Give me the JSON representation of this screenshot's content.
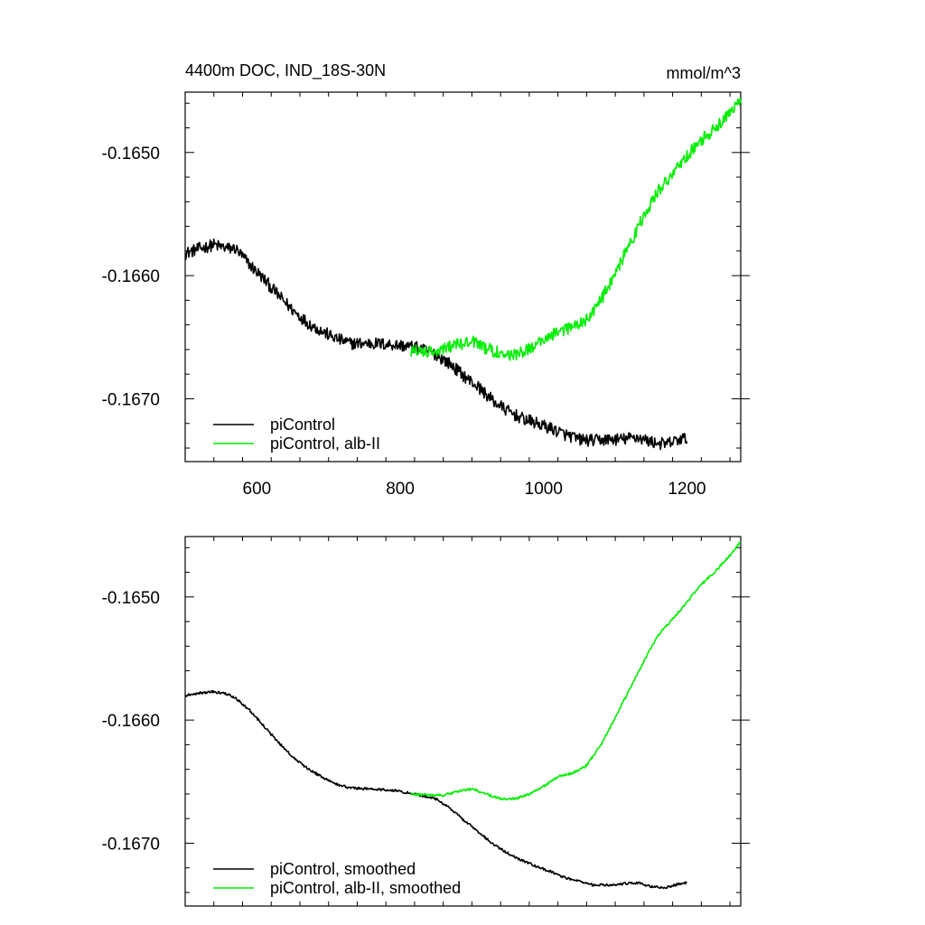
{
  "chart_data": [
    {
      "type": "line",
      "title": "4400m DOC, IND_18S-30N",
      "units": "mmol/m^3",
      "xlim": [
        500,
        1275
      ],
      "ylim": [
        -0.16751,
        -0.16451
      ],
      "xticks": [
        600,
        800,
        1000,
        1200
      ],
      "xtick_labels": [
        "600",
        "800",
        "1000",
        "1200"
      ],
      "yticks": [
        -0.165,
        -0.166,
        -0.167
      ],
      "ytick_labels": [
        "-0.1650",
        "-0.1660",
        "-0.1670"
      ],
      "grid": false,
      "legend_position": "bottom-left",
      "series": [
        {
          "name": "piControl",
          "color": "#000000",
          "noise": 5e-05,
          "x": [
            500,
            520,
            540,
            560,
            570,
            590,
            610,
            630,
            650,
            670,
            690,
            710,
            730,
            760,
            790,
            820,
            850,
            870,
            890,
            910,
            930,
            950,
            970,
            990,
            1010,
            1030,
            1050,
            1070,
            1090,
            1110,
            1130,
            1150,
            1170,
            1190,
            1200
          ],
          "y": [
            -0.16582,
            -0.16578,
            -0.16575,
            -0.16578,
            -0.16578,
            -0.16591,
            -0.16603,
            -0.16616,
            -0.16628,
            -0.16638,
            -0.16645,
            -0.16651,
            -0.16655,
            -0.16655,
            -0.16656,
            -0.16658,
            -0.16664,
            -0.16672,
            -0.16682,
            -0.16691,
            -0.16702,
            -0.1671,
            -0.16716,
            -0.1672,
            -0.16724,
            -0.16729,
            -0.16733,
            -0.16734,
            -0.16733,
            -0.16733,
            -0.16731,
            -0.16735,
            -0.16737,
            -0.16733,
            -0.16732
          ]
        },
        {
          "name": "piControl, alb-II",
          "color": "#00ee00",
          "noise": 5e-05,
          "x": [
            815,
            840,
            860,
            880,
            900,
            920,
            940,
            960,
            980,
            1000,
            1020,
            1040,
            1060,
            1080,
            1100,
            1120,
            1140,
            1160,
            1180,
            1200,
            1220,
            1240,
            1260,
            1275
          ],
          "y": [
            -0.16661,
            -0.16661,
            -0.1666,
            -0.16656,
            -0.16653,
            -0.16659,
            -0.16663,
            -0.16665,
            -0.16659,
            -0.16652,
            -0.16645,
            -0.16642,
            -0.16636,
            -0.1662,
            -0.16598,
            -0.16575,
            -0.16551,
            -0.16531,
            -0.16518,
            -0.16503,
            -0.1649,
            -0.1648,
            -0.16467,
            -0.16455
          ]
        }
      ]
    },
    {
      "type": "line",
      "title": "",
      "xlim": [
        500,
        1275
      ],
      "ylim": [
        -0.16751,
        -0.16451
      ],
      "xticks": [
        600,
        800,
        1000,
        1200
      ],
      "yticks": [
        -0.165,
        -0.166,
        -0.167
      ],
      "ytick_labels": [
        "-0.1650",
        "-0.1660",
        "-0.1670"
      ],
      "grid": false,
      "legend_position": "bottom-left",
      "series": [
        {
          "name": "piControl, smoothed",
          "color": "#000000",
          "noise": 1e-05,
          "x": [
            500,
            520,
            540,
            560,
            570,
            590,
            610,
            630,
            650,
            670,
            690,
            710,
            730,
            760,
            790,
            820,
            850,
            870,
            890,
            910,
            930,
            950,
            970,
            990,
            1010,
            1030,
            1050,
            1070,
            1090,
            1110,
            1130,
            1150,
            1170,
            1190,
            1200
          ],
          "y": [
            -0.1658,
            -0.16578,
            -0.16577,
            -0.16579,
            -0.16582,
            -0.16592,
            -0.16605,
            -0.16618,
            -0.1663,
            -0.16639,
            -0.16646,
            -0.16652,
            -0.16655,
            -0.16656,
            -0.16657,
            -0.1666,
            -0.16664,
            -0.16672,
            -0.16682,
            -0.16691,
            -0.16701,
            -0.16708,
            -0.16714,
            -0.16719,
            -0.16723,
            -0.16728,
            -0.16731,
            -0.16734,
            -0.16734,
            -0.16733,
            -0.16732,
            -0.16735,
            -0.16736,
            -0.16733,
            -0.16732
          ]
        },
        {
          "name": "piControl, alb-II, smoothed",
          "color": "#00ee00",
          "noise": 1e-05,
          "x": [
            815,
            840,
            860,
            880,
            900,
            920,
            940,
            960,
            980,
            1000,
            1020,
            1040,
            1060,
            1080,
            1100,
            1120,
            1140,
            1160,
            1180,
            1200,
            1220,
            1240,
            1260,
            1275
          ],
          "y": [
            -0.1666,
            -0.16661,
            -0.16661,
            -0.16658,
            -0.16656,
            -0.1666,
            -0.16664,
            -0.16664,
            -0.1666,
            -0.16654,
            -0.16646,
            -0.16643,
            -0.16637,
            -0.1662,
            -0.16598,
            -0.16575,
            -0.16552,
            -0.16531,
            -0.16518,
            -0.16504,
            -0.1649,
            -0.16479,
            -0.16466,
            -0.16455
          ]
        }
      ]
    }
  ]
}
